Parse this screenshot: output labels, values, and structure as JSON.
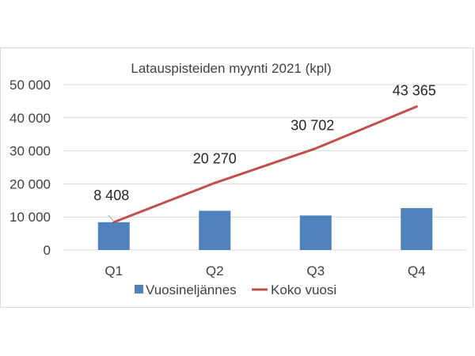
{
  "chart_data": {
    "type": "bar",
    "title": "Latauspisteiden myynti 2021 (kpl)",
    "categories": [
      "Q1",
      "Q2",
      "Q3",
      "Q4"
    ],
    "ylim": [
      0,
      50000
    ],
    "yticks": [
      0,
      10000,
      20000,
      30000,
      40000,
      50000
    ],
    "ytick_labels": [
      "0",
      "10 000",
      "20 000",
      "30 000",
      "40 000",
      "50 000"
    ],
    "grid": true,
    "legend_position": "bottom",
    "series": [
      {
        "name": "Vuosineljännes",
        "type": "bar",
        "color": "#4f81bd",
        "values": [
          8408,
          11862,
          10432,
          12663
        ]
      },
      {
        "name": "Koko vuosi",
        "type": "line",
        "color": "#c0504d",
        "values": [
          8408,
          20270,
          30702,
          43365
        ],
        "data_labels": [
          "8 408",
          "20 270",
          "30 702",
          "43 365"
        ]
      }
    ]
  }
}
